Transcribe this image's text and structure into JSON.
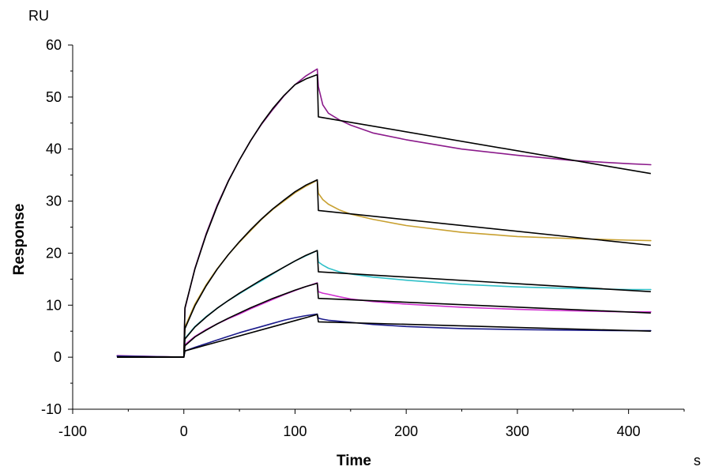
{
  "chart_data": {
    "type": "line",
    "xlabel": "Time",
    "ylabel": "Response",
    "x_unit": "s",
    "y_unit": "RU",
    "xlim": [
      -100,
      450
    ],
    "ylim": [
      -10,
      60
    ],
    "x_ticks": [
      -100,
      0,
      100,
      200,
      300,
      400
    ],
    "y_ticks": [
      -10,
      0,
      10,
      20,
      30,
      40,
      50,
      60
    ],
    "grid": false,
    "legend": "none",
    "series": [
      {
        "color": "#8B1A8B",
        "x": [
          -60,
          0,
          1,
          10,
          20,
          30,
          40,
          50,
          60,
          70,
          80,
          90,
          100,
          110,
          120,
          121,
          125,
          130,
          140,
          150,
          170,
          200,
          250,
          300,
          350,
          400,
          420
        ],
        "y": [
          0.3,
          0,
          9.3,
          17.1,
          23.7,
          29.2,
          33.9,
          37.9,
          41.6,
          44.8,
          47.6,
          50.2,
          52.4,
          54.1,
          55.4,
          52.0,
          48.5,
          46.9,
          45.6,
          44.6,
          43.1,
          41.8,
          40.0,
          38.8,
          37.8,
          37.2,
          37.0
        ]
      },
      {
        "color": "#C8A030",
        "x": [
          -60,
          0,
          1,
          10,
          20,
          30,
          40,
          50,
          60,
          70,
          80,
          90,
          100,
          110,
          120,
          121,
          125,
          130,
          140,
          150,
          170,
          200,
          250,
          300,
          350,
          400,
          420
        ],
        "y": [
          0.2,
          0,
          5.8,
          10.2,
          13.9,
          17.0,
          19.7,
          22.1,
          24.3,
          26.5,
          28.4,
          30.0,
          31.6,
          32.9,
          34.0,
          31.5,
          30.3,
          29.4,
          28.3,
          27.5,
          26.5,
          25.3,
          24.0,
          23.2,
          22.8,
          22.5,
          22.4
        ]
      },
      {
        "color": "#30C0C8",
        "x": [
          -60,
          0,
          1,
          10,
          20,
          30,
          40,
          50,
          60,
          70,
          80,
          90,
          100,
          110,
          120,
          121,
          125,
          130,
          140,
          150,
          170,
          200,
          250,
          300,
          350,
          400,
          420
        ],
        "y": [
          0.2,
          0,
          3.6,
          5.9,
          7.8,
          9.4,
          10.9,
          12.2,
          13.5,
          14.7,
          16.0,
          17.3,
          18.5,
          19.5,
          20.5,
          18.3,
          17.7,
          17.1,
          16.4,
          16.0,
          15.4,
          14.8,
          14.0,
          13.5,
          13.2,
          13.0,
          13.0
        ]
      },
      {
        "color": "#D030D0",
        "x": [
          -60,
          0,
          1,
          10,
          20,
          30,
          40,
          50,
          60,
          70,
          80,
          90,
          100,
          110,
          120,
          121,
          125,
          130,
          140,
          150,
          170,
          200,
          250,
          300,
          350,
          400,
          420
        ],
        "y": [
          0.2,
          0,
          2.4,
          4.0,
          5.3,
          6.4,
          7.4,
          8.3,
          9.3,
          10.2,
          11.1,
          12.0,
          12.8,
          13.6,
          14.3,
          12.6,
          12.3,
          12.1,
          11.6,
          11.2,
          10.7,
          10.2,
          9.6,
          9.2,
          8.9,
          8.7,
          8.7
        ]
      },
      {
        "color": "#1A1A8B",
        "x": [
          -60,
          0,
          1,
          10,
          20,
          30,
          40,
          50,
          60,
          70,
          80,
          90,
          100,
          110,
          120,
          121,
          125,
          130,
          140,
          150,
          170,
          200,
          250,
          300,
          350,
          400,
          420
        ],
        "y": [
          0.2,
          0,
          1.2,
          1.9,
          2.6,
          3.3,
          4.0,
          4.7,
          5.3,
          5.9,
          6.5,
          7.1,
          7.6,
          8.0,
          8.3,
          7.5,
          7.3,
          7.1,
          6.9,
          6.7,
          6.3,
          5.9,
          5.5,
          5.3,
          5.2,
          5.1,
          5.1
        ]
      }
    ],
    "fits": [
      {
        "color": "#000000",
        "x": [
          -60,
          0,
          1,
          10,
          20,
          30,
          40,
          50,
          60,
          70,
          80,
          90,
          100,
          110,
          120,
          121,
          420
        ],
        "y": [
          0,
          0,
          9.5,
          17.0,
          23.5,
          29.0,
          33.8,
          37.9,
          41.6,
          44.9,
          47.8,
          50.3,
          52.4,
          53.5,
          54.3,
          46.2,
          35.3
        ]
      },
      {
        "color": "#000000",
        "x": [
          -60,
          0,
          1,
          10,
          20,
          30,
          40,
          50,
          60,
          70,
          80,
          90,
          100,
          110,
          120,
          121,
          420
        ],
        "y": [
          0,
          0,
          5.5,
          9.9,
          13.7,
          16.9,
          19.7,
          22.2,
          24.5,
          26.6,
          28.5,
          30.2,
          31.8,
          33.1,
          34.1,
          28.2,
          21.5
        ]
      },
      {
        "color": "#000000",
        "x": [
          -60,
          0,
          1,
          10,
          20,
          30,
          40,
          50,
          60,
          70,
          80,
          90,
          100,
          110,
          120,
          121,
          420
        ],
        "y": [
          0,
          0,
          3.5,
          5.8,
          7.7,
          9.4,
          10.9,
          12.3,
          13.6,
          14.9,
          16.1,
          17.3,
          18.5,
          19.6,
          20.5,
          16.4,
          12.6
        ]
      },
      {
        "color": "#000000",
        "x": [
          -60,
          0,
          1,
          10,
          20,
          30,
          40,
          50,
          60,
          70,
          80,
          90,
          100,
          110,
          120,
          121,
          420
        ],
        "y": [
          0,
          0,
          2.2,
          3.9,
          5.2,
          6.4,
          7.5,
          8.5,
          9.5,
          10.4,
          11.3,
          12.1,
          12.9,
          13.6,
          14.2,
          11.3,
          8.5
        ]
      },
      {
        "color": "#000000",
        "x": [
          -60,
          0,
          1,
          120,
          121,
          420
        ],
        "y": [
          0,
          0,
          1.2,
          8.2,
          6.8,
          5.0
        ]
      }
    ]
  }
}
